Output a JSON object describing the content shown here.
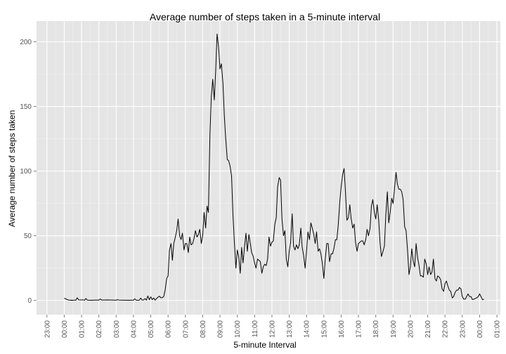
{
  "chart_data": {
    "type": "line",
    "title": "Average number of steps taken in a 5-minute interval",
    "xlabel": "5-minute Interval",
    "ylabel": "Average number of steps taken",
    "x_ticks": [
      "23:00",
      "00:00",
      "01:00",
      "02:00",
      "03:00",
      "04:00",
      "05:00",
      "06:00",
      "07:00",
      "08:00",
      "09:00",
      "10:00",
      "11:00",
      "12:00",
      "13:00",
      "14:00",
      "15:00",
      "16:00",
      "17:00",
      "18:00",
      "19:00",
      "20:00",
      "21:00",
      "22:00",
      "23:00",
      "00:00",
      "01:00"
    ],
    "x_tick_hours": [
      -1,
      0,
      1,
      2,
      3,
      4,
      5,
      6,
      7,
      8,
      9,
      10,
      11,
      12,
      13,
      14,
      15,
      16,
      17,
      18,
      19,
      20,
      21,
      22,
      23,
      24,
      25
    ],
    "y_ticks": [
      0,
      50,
      100,
      150,
      200
    ],
    "xlim_hours": [
      -1.6,
      25.2
    ],
    "ylim": [
      -11,
      216
    ],
    "grid": true,
    "background": "#e5e5e5",
    "line_color": "#000000",
    "series": [
      {
        "values": [
          [
            0,
            1.7
          ],
          [
            0.25,
            0.3
          ],
          [
            0.5,
            0.1
          ],
          [
            0.33,
            0.2
          ],
          [
            0.42,
            0.1
          ],
          [
            0.5,
            0.1
          ],
          [
            0.58,
            0.3
          ],
          [
            0.67,
            0.2
          ],
          [
            0.75,
            2.1
          ],
          [
            0.83,
            0.5
          ],
          [
            1,
            0.4
          ],
          [
            1.08,
            0.5
          ],
          [
            1.17,
            0.1
          ],
          [
            1.25,
            1.5
          ],
          [
            1.33,
            0.3
          ],
          [
            1.5,
            0.1
          ],
          [
            1.67,
            0.2
          ],
          [
            1.83,
            0.3
          ],
          [
            2,
            0.3
          ],
          [
            2.08,
            1.1
          ],
          [
            2.17,
            0.3
          ],
          [
            2.5,
            0.4
          ],
          [
            2.83,
            0.3
          ],
          [
            3,
            0.2
          ],
          [
            3.08,
            0.6
          ],
          [
            3.17,
            0.3
          ],
          [
            3.5,
            0.2
          ],
          [
            3.75,
            0.1
          ],
          [
            4,
            0.3
          ],
          [
            4.08,
            1.2
          ],
          [
            4.17,
            0.1
          ],
          [
            4.33,
            0.2
          ],
          [
            4.42,
            1.8
          ],
          [
            4.5,
            0.4
          ],
          [
            4.58,
            0.3
          ],
          [
            4.67,
            1.4
          ],
          [
            4.75,
            0.2
          ],
          [
            4.83,
            3.5
          ],
          [
            4.92,
            0.5
          ],
          [
            5,
            2.8
          ],
          [
            5.08,
            0.6
          ],
          [
            5.17,
            1.9
          ],
          [
            5.25,
            0.2
          ],
          [
            5.33,
            1.4
          ],
          [
            5.42,
            2.5
          ],
          [
            5.5,
            3.3
          ],
          [
            5.58,
            2.1
          ],
          [
            5.67,
            2.2
          ],
          [
            5.75,
            3.1
          ],
          [
            5.83,
            8
          ],
          [
            5.92,
            17
          ],
          [
            6,
            19
          ],
          [
            6.08,
            39
          ],
          [
            6.17,
            44
          ],
          [
            6.25,
            31
          ],
          [
            6.33,
            44
          ],
          [
            6.42,
            49
          ],
          [
            6.5,
            54
          ],
          [
            6.58,
            63
          ],
          [
            6.67,
            50
          ],
          [
            6.75,
            47
          ],
          [
            6.83,
            52
          ],
          [
            6.92,
            39
          ],
          [
            7,
            44
          ],
          [
            7.08,
            44
          ],
          [
            7.17,
            37
          ],
          [
            7.25,
            49
          ],
          [
            7.33,
            43
          ],
          [
            7.42,
            44
          ],
          [
            7.5,
            48
          ],
          [
            7.58,
            54
          ],
          [
            7.67,
            49
          ],
          [
            7.75,
            51
          ],
          [
            7.83,
            55
          ],
          [
            7.92,
            44
          ],
          [
            8,
            50
          ],
          [
            8.08,
            68
          ],
          [
            8.17,
            56
          ],
          [
            8.25,
            73
          ],
          [
            8.33,
            68
          ],
          [
            8.42,
            129
          ],
          [
            8.5,
            158
          ],
          [
            8.58,
            171
          ],
          [
            8.67,
            155
          ],
          [
            8.75,
            177
          ],
          [
            8.83,
            206
          ],
          [
            8.92,
            196
          ],
          [
            9,
            179
          ],
          [
            9.08,
            183
          ],
          [
            9.17,
            168
          ],
          [
            9.25,
            143
          ],
          [
            9.33,
            125
          ],
          [
            9.42,
            109
          ],
          [
            9.5,
            108
          ],
          [
            9.58,
            104
          ],
          [
            9.67,
            96
          ],
          [
            9.75,
            66
          ],
          [
            9.83,
            45
          ],
          [
            9.92,
            25
          ],
          [
            10,
            39
          ],
          [
            10.08,
            34
          ],
          [
            10.17,
            21
          ],
          [
            10.25,
            41
          ],
          [
            10.33,
            29
          ],
          [
            10.42,
            42
          ],
          [
            10.5,
            52
          ],
          [
            10.58,
            38
          ],
          [
            10.67,
            51
          ],
          [
            10.75,
            44
          ],
          [
            10.83,
            37
          ],
          [
            10.92,
            34
          ],
          [
            11,
            29
          ],
          [
            11.08,
            25
          ],
          [
            11.17,
            32
          ],
          [
            11.25,
            31
          ],
          [
            11.33,
            30
          ],
          [
            11.42,
            21
          ],
          [
            11.5,
            26
          ],
          [
            11.58,
            28
          ],
          [
            11.67,
            27
          ],
          [
            11.75,
            32
          ],
          [
            11.83,
            49
          ],
          [
            11.92,
            42
          ],
          [
            12,
            45
          ],
          [
            12.08,
            46
          ],
          [
            12.17,
            59
          ],
          [
            12.25,
            64
          ],
          [
            12.33,
            88
          ],
          [
            12.42,
            95
          ],
          [
            12.5,
            93
          ],
          [
            12.58,
            63
          ],
          [
            12.67,
            50
          ],
          [
            12.75,
            54
          ],
          [
            12.83,
            32
          ],
          [
            12.92,
            26
          ],
          [
            13,
            38
          ],
          [
            13.08,
            45
          ],
          [
            13.17,
            67
          ],
          [
            13.25,
            42
          ],
          [
            13.33,
            39
          ],
          [
            13.42,
            43
          ],
          [
            13.5,
            40
          ],
          [
            13.58,
            43
          ],
          [
            13.67,
            56
          ],
          [
            13.75,
            41
          ],
          [
            13.83,
            35
          ],
          [
            13.92,
            25
          ],
          [
            14,
            38
          ],
          [
            14.08,
            53
          ],
          [
            14.17,
            47
          ],
          [
            14.25,
            60
          ],
          [
            14.33,
            56
          ],
          [
            14.42,
            51
          ],
          [
            14.5,
            44
          ],
          [
            14.58,
            53
          ],
          [
            14.67,
            38
          ],
          [
            14.75,
            40
          ],
          [
            14.83,
            36
          ],
          [
            14.92,
            28
          ],
          [
            15,
            17
          ],
          [
            15.08,
            32
          ],
          [
            15.17,
            44
          ],
          [
            15.25,
            44
          ],
          [
            15.33,
            30
          ],
          [
            15.42,
            36
          ],
          [
            15.5,
            36
          ],
          [
            15.58,
            40
          ],
          [
            15.67,
            47
          ],
          [
            15.75,
            47
          ],
          [
            15.83,
            58
          ],
          [
            15.92,
            76
          ],
          [
            16,
            88
          ],
          [
            16.08,
            97
          ],
          [
            16.17,
            102
          ],
          [
            16.25,
            84
          ],
          [
            16.33,
            62
          ],
          [
            16.42,
            64
          ],
          [
            16.5,
            74
          ],
          [
            16.58,
            63
          ],
          [
            16.67,
            56
          ],
          [
            16.75,
            59
          ],
          [
            16.83,
            45
          ],
          [
            16.92,
            38
          ],
          [
            17,
            44
          ],
          [
            17.08,
            45
          ],
          [
            17.17,
            46
          ],
          [
            17.25,
            46
          ],
          [
            17.33,
            43
          ],
          [
            17.42,
            47
          ],
          [
            17.5,
            55
          ],
          [
            17.58,
            50
          ],
          [
            17.67,
            56
          ],
          [
            17.75,
            73
          ],
          [
            17.83,
            78
          ],
          [
            17.92,
            68
          ],
          [
            18,
            63
          ],
          [
            18.08,
            74
          ],
          [
            18.17,
            62
          ],
          [
            18.25,
            44
          ],
          [
            18.33,
            34
          ],
          [
            18.42,
            38
          ],
          [
            18.5,
            42
          ],
          [
            18.58,
            66
          ],
          [
            18.67,
            84
          ],
          [
            18.75,
            60
          ],
          [
            18.83,
            68
          ],
          [
            18.92,
            79
          ],
          [
            19,
            75
          ],
          [
            19.08,
            86
          ],
          [
            19.17,
            99
          ],
          [
            19.25,
            90
          ],
          [
            19.33,
            86
          ],
          [
            19.42,
            86
          ],
          [
            19.5,
            84
          ],
          [
            19.58,
            78
          ],
          [
            19.67,
            57
          ],
          [
            19.75,
            54
          ],
          [
            19.83,
            40
          ],
          [
            19.92,
            20
          ],
          [
            20,
            26
          ],
          [
            20.08,
            40
          ],
          [
            20.17,
            30
          ],
          [
            20.25,
            26
          ],
          [
            20.33,
            44
          ],
          [
            20.42,
            33
          ],
          [
            20.5,
            27
          ],
          [
            20.58,
            19
          ],
          [
            20.67,
            19
          ],
          [
            20.75,
            18
          ],
          [
            20.83,
            32
          ],
          [
            20.92,
            28
          ],
          [
            21,
            20
          ],
          [
            21.08,
            26
          ],
          [
            21.17,
            20
          ],
          [
            21.25,
            22
          ],
          [
            21.33,
            32
          ],
          [
            21.42,
            17
          ],
          [
            21.5,
            15
          ],
          [
            21.58,
            19
          ],
          [
            21.67,
            18
          ],
          [
            21.75,
            16
          ],
          [
            21.83,
            9
          ],
          [
            21.92,
            7
          ],
          [
            22,
            13
          ],
          [
            22.08,
            15
          ],
          [
            22.17,
            11
          ],
          [
            22.25,
            8
          ],
          [
            22.33,
            7
          ],
          [
            22.42,
            2
          ],
          [
            22.5,
            3
          ],
          [
            22.58,
            6
          ],
          [
            22.67,
            8
          ],
          [
            22.75,
            8
          ],
          [
            22.83,
            10
          ],
          [
            22.92,
            9
          ],
          [
            23,
            3
          ],
          [
            23.08,
            1
          ],
          [
            23.17,
            1
          ],
          [
            23.25,
            3
          ],
          [
            23.33,
            5
          ],
          [
            23.42,
            3
          ],
          [
            23.5,
            3
          ],
          [
            23.58,
            0.7
          ],
          [
            23.67,
            1
          ],
          [
            23.75,
            1.5
          ],
          [
            23.83,
            2
          ],
          [
            23.92,
            3
          ],
          [
            24,
            5
          ],
          [
            24.08,
            3
          ],
          [
            24.17,
            0.5
          ],
          [
            24.25,
            1
          ]
        ]
      }
    ]
  }
}
